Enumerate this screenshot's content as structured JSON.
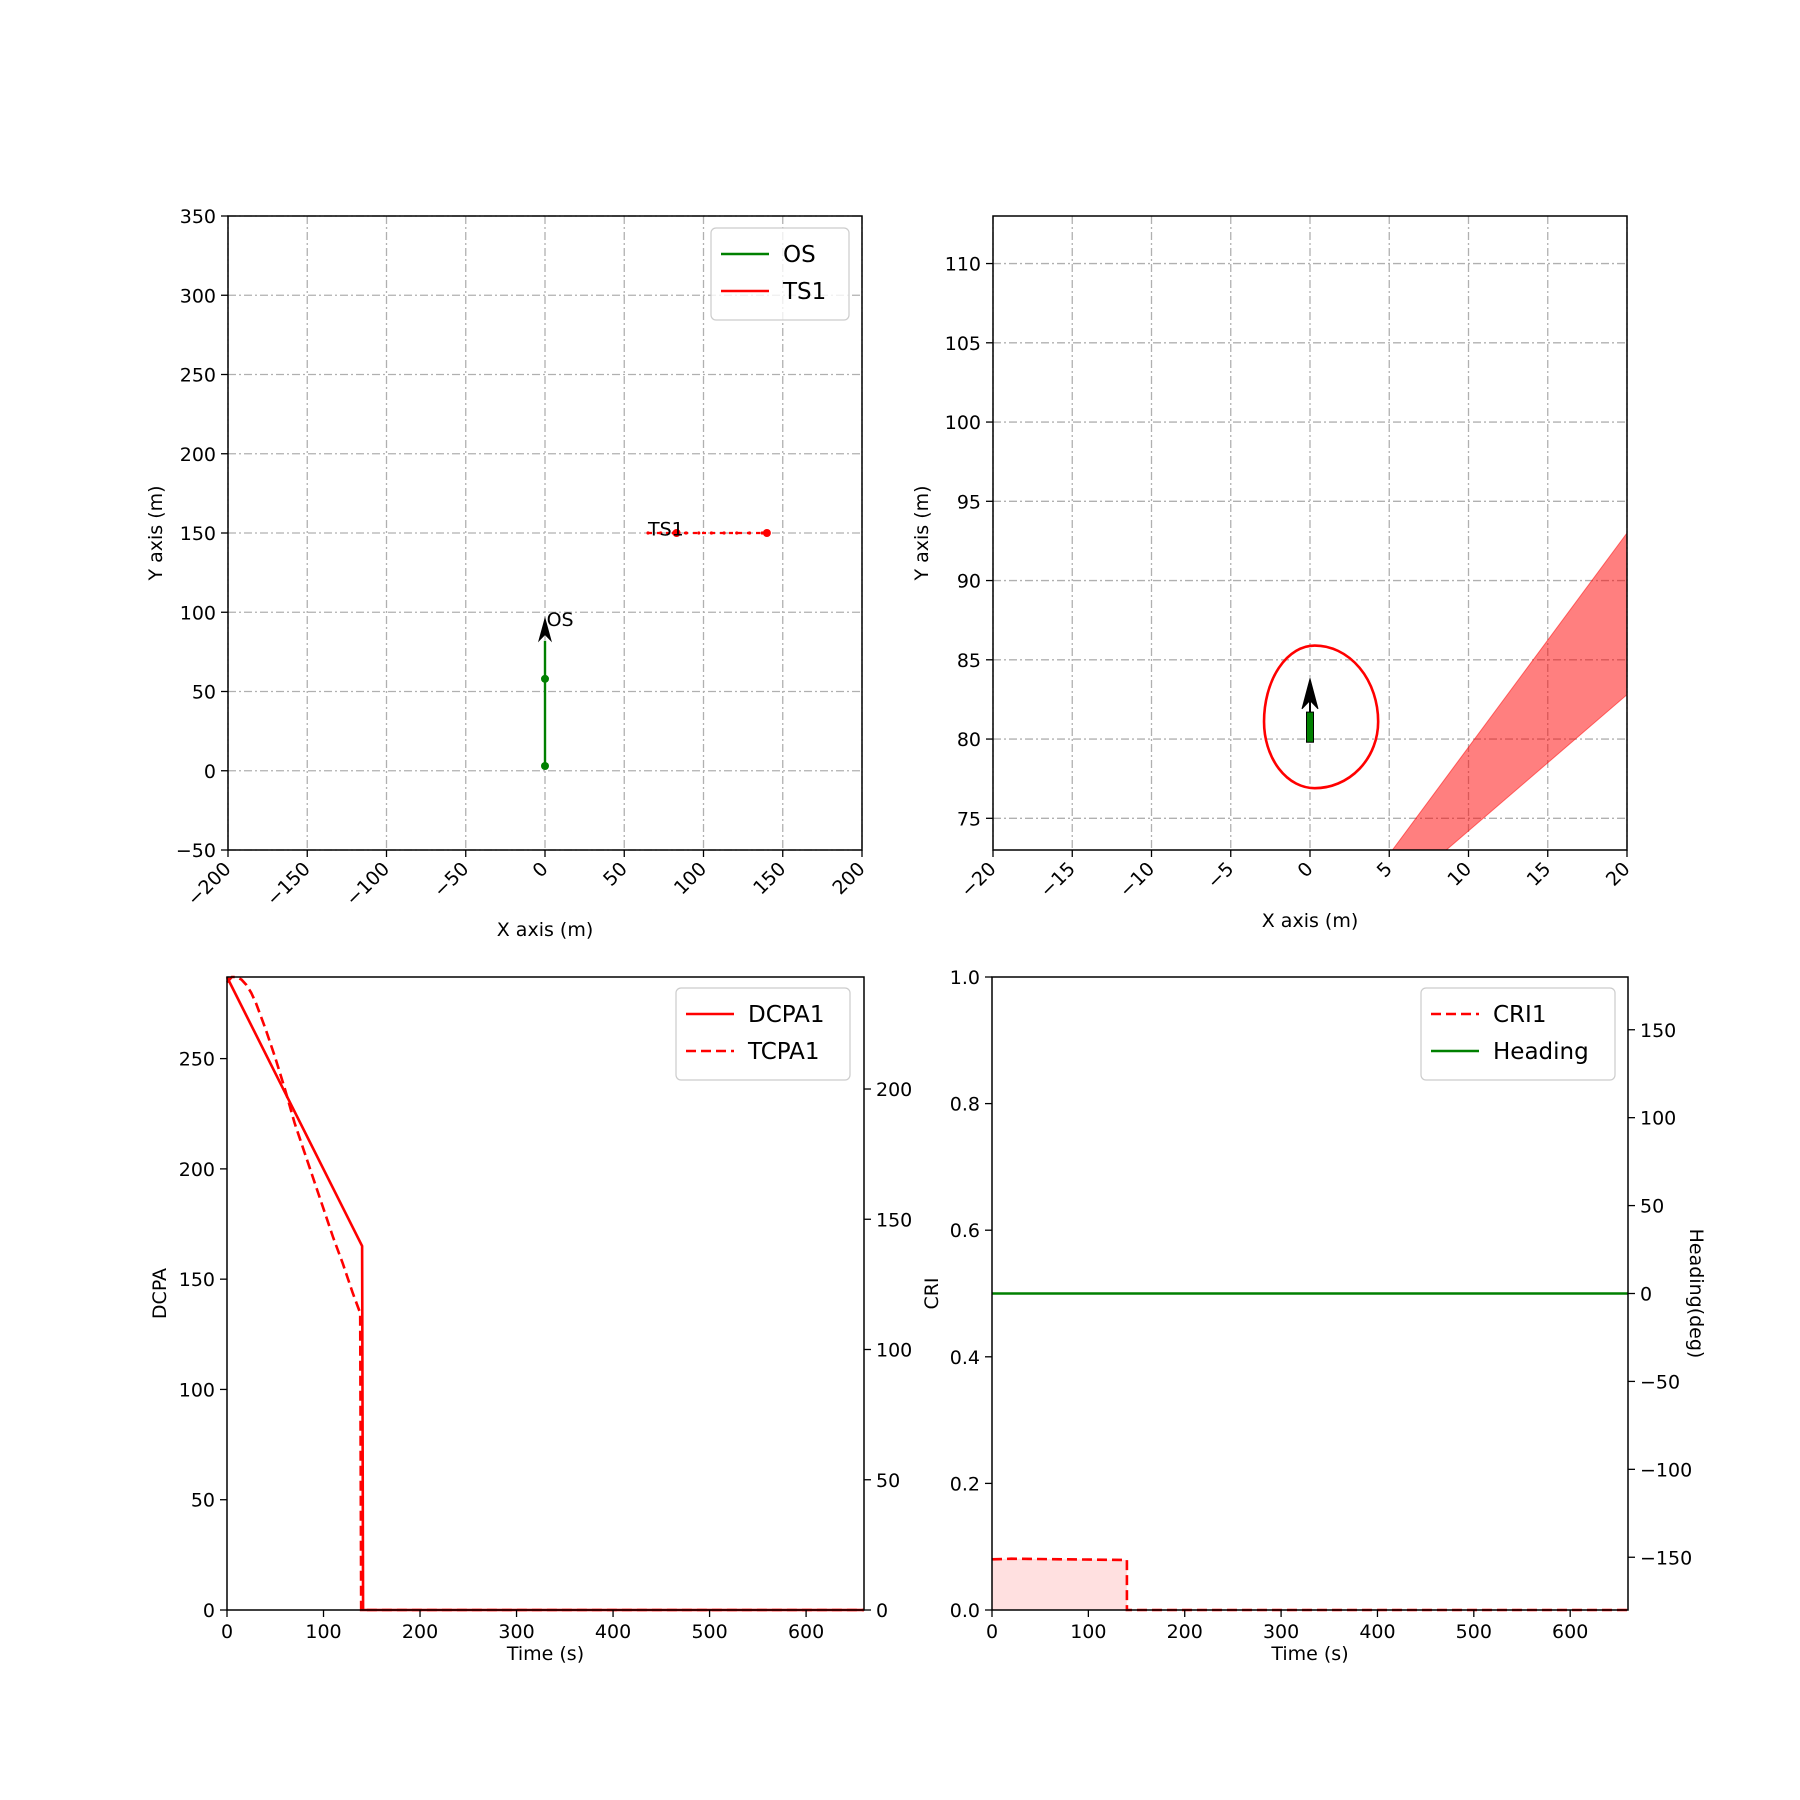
{
  "colors": {
    "os": "#008000",
    "ts": "#ff0000",
    "fill": "#ff0000",
    "grid": "#b0b0b0"
  },
  "chart_data": [
    {
      "id": "traj",
      "type": "line",
      "xlabel": "X axis (m)",
      "ylabel": "Y axis (m)",
      "xlim": [
        -200,
        200
      ],
      "ylim": [
        -50,
        350
      ],
      "xticks": [
        -200,
        -150,
        -100,
        -50,
        0,
        50,
        100,
        150,
        200
      ],
      "yticks": [
        -50,
        0,
        50,
        100,
        150,
        200,
        250,
        300,
        350
      ],
      "xtick_labels": [
        "−200",
        "−150",
        "−100",
        "−50",
        "0",
        "50",
        "100",
        "150",
        "200"
      ],
      "ytick_labels": [
        "−50",
        "0",
        "50",
        "100",
        "150",
        "200",
        "250",
        "300",
        "350"
      ],
      "grid": true,
      "legend_position": "top-right",
      "series": [
        {
          "name": "OS",
          "color": "#008000",
          "x": [
            0,
            0
          ],
          "y": [
            3,
            82
          ],
          "markers": [
            [
              0,
              3
            ],
            [
              0,
              58
            ]
          ]
        },
        {
          "name": "TS1",
          "color": "#ff0000",
          "x": [
            65,
            140
          ],
          "y": [
            150,
            150
          ],
          "markers": [
            [
              140,
              150
            ],
            [
              83,
              150
            ]
          ]
        }
      ],
      "annotations": [
        {
          "text": "OS",
          "x": 1,
          "y": 85
        },
        {
          "text": "TS1",
          "x": 65,
          "y": 151
        }
      ]
    },
    {
      "id": "zoom",
      "type": "line",
      "xlabel": "X axis (m)",
      "ylabel": "Y axis (m)",
      "xlim": [
        -20,
        20
      ],
      "ylim": [
        73,
        113
      ],
      "xticks": [
        -20,
        -15,
        -10,
        -5,
        0,
        5,
        10,
        15,
        20
      ],
      "yticks": [
        75,
        80,
        85,
        90,
        95,
        100,
        105,
        110
      ],
      "xtick_labels": [
        "−20",
        "−15",
        "−10",
        "−5",
        "0",
        "5",
        "10",
        "15",
        "20"
      ],
      "ytick_labels": [
        "75",
        "80",
        "85",
        "90",
        "95",
        "100",
        "105",
        "110"
      ],
      "grid": true,
      "ship_domain": {
        "cx": 0.3,
        "cy": 81.1,
        "rx_left": 3.2,
        "rx_right": 4.0,
        "ry_top": 4.8,
        "ry_bottom": 4.2
      },
      "obstacle_zone": [
        [
          5.2,
          73
        ],
        [
          8.6,
          73
        ],
        [
          20,
          82.8
        ],
        [
          20,
          93
        ]
      ]
    },
    {
      "id": "dcpa",
      "type": "line",
      "xlabel": "Time (s)",
      "ylabel": "DCPA",
      "xlim": [
        0,
        660
      ],
      "ylim": [
        0,
        287
      ],
      "y2lim": [
        0,
        243
      ],
      "xticks": [
        0,
        100,
        200,
        300,
        400,
        500,
        600
      ],
      "yticks": [
        0,
        50,
        100,
        150,
        200,
        250
      ],
      "y2ticks": [
        0,
        50,
        100,
        150,
        200
      ],
      "legend_position": "top-right",
      "series": [
        {
          "name": "DCPA1",
          "style": "solid",
          "axis": "left",
          "x": [
            0,
            140,
            140,
            141,
            660
          ],
          "y": [
            287,
            165,
            162,
            0,
            0
          ]
        },
        {
          "name": "TCPA1",
          "style": "dashed",
          "axis": "right",
          "x": [
            0,
            5,
            10,
            15,
            20,
            25,
            30,
            40,
            50,
            60,
            70,
            80,
            90,
            100,
            110,
            120,
            130,
            138,
            139,
            140,
            660
          ],
          "y": [
            241,
            243,
            243,
            242,
            240,
            237,
            233,
            223,
            212,
            200,
            187,
            176,
            165,
            154,
            143,
            133,
            122,
            114,
            0,
            0,
            0
          ]
        }
      ]
    },
    {
      "id": "cri",
      "type": "area",
      "xlabel": "Time (s)",
      "ylabel": "CRI",
      "y2label": "Heading(deg)",
      "xlim": [
        0,
        660
      ],
      "ylim": [
        0,
        1.0
      ],
      "y2lim": [
        -180,
        180
      ],
      "xticks": [
        0,
        100,
        200,
        300,
        400,
        500,
        600
      ],
      "yticks": [
        0.0,
        0.2,
        0.4,
        0.6,
        0.8,
        1.0
      ],
      "ytick_labels": [
        "0.0",
        "0.2",
        "0.4",
        "0.6",
        "0.8",
        "1.0"
      ],
      "y2ticks": [
        -150,
        -100,
        -50,
        0,
        50,
        100,
        150
      ],
      "y2tick_labels": [
        "−150",
        "−100",
        "−50",
        "0",
        "50",
        "100",
        "150"
      ],
      "legend_position": "top-right",
      "series": [
        {
          "name": "CRI1",
          "style": "dashed",
          "axis": "left",
          "x": [
            0,
            20,
            140,
            140,
            660
          ],
          "y": [
            0.08,
            0.081,
            0.079,
            0,
            0
          ]
        },
        {
          "name": "Heading",
          "style": "solid",
          "axis": "right",
          "x": [
            0,
            660
          ],
          "y": [
            0,
            0
          ]
        }
      ]
    }
  ]
}
